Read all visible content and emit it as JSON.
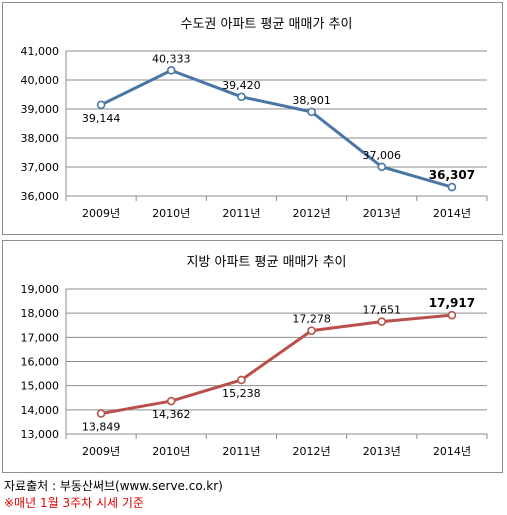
{
  "chart_data": [
    {
      "type": "line",
      "title": "수도권 아파트 평균 매매가 추이",
      "categories": [
        "2009년",
        "2010년",
        "2011년",
        "2012년",
        "2013년",
        "2014년"
      ],
      "values": [
        39144,
        40333,
        39420,
        38901,
        37006,
        36307
      ],
      "value_labels": [
        "39,144",
        "40,333",
        "39,420",
        "38,901",
        "37,006",
        "36,307"
      ],
      "ylim": [
        36000,
        41000
      ],
      "yticks": [
        36000,
        37000,
        38000,
        39000,
        40000,
        41000
      ],
      "ytick_labels": [
        "36,000",
        "37,000",
        "38,000",
        "39,000",
        "40,000",
        "41,000"
      ],
      "label_above": [
        false,
        true,
        true,
        true,
        true,
        true
      ],
      "bold_last_label": true,
      "color": "#4a76a6",
      "grid": true,
      "legend": "none"
    },
    {
      "type": "line",
      "title": "지방 아파트 평균 매매가 추이",
      "categories": [
        "2009년",
        "2010년",
        "2011년",
        "2012년",
        "2013년",
        "2014년"
      ],
      "values": [
        13849,
        14362,
        15238,
        17278,
        17651,
        17917
      ],
      "value_labels": [
        "13,849",
        "14,362",
        "15,238",
        "17,278",
        "17,651",
        "17,917"
      ],
      "ylim": [
        13000,
        19000
      ],
      "yticks": [
        13000,
        14000,
        15000,
        16000,
        17000,
        18000,
        19000
      ],
      "ytick_labels": [
        "13,000",
        "14,000",
        "15,000",
        "16,000",
        "17,000",
        "18,000",
        "19,000"
      ],
      "label_above": [
        false,
        false,
        false,
        true,
        true,
        true
      ],
      "bold_last_label": true,
      "color": "#b9504b",
      "grid": true,
      "legend": "none"
    }
  ],
  "footer": {
    "source": "자료출처 : 부동산써브(www.serve.co.kr)",
    "note": "※매년 1월 3주차 시세 기준"
  }
}
